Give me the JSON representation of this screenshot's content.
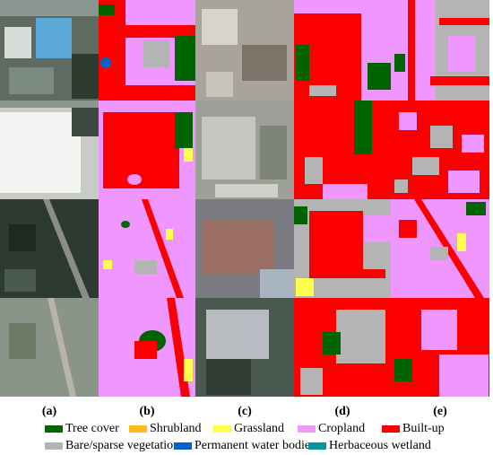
{
  "panel_labels": [
    "(a)",
    "(b)",
    "(c)",
    "(d)",
    "(e)"
  ],
  "legend": [
    {
      "label": "Tree cover",
      "color": "#006400"
    },
    {
      "label": "Shrubland",
      "color": "#ffbb22"
    },
    {
      "label": "Grassland",
      "color": "#ffff4c"
    },
    {
      "label": "Cropland",
      "color": "#f096ff"
    },
    {
      "label": "Built-up",
      "color": "#fa0000"
    },
    {
      "label": "Bare/sparse vegetation",
      "color": "#b4b4b4"
    },
    {
      "label": "Permanent water bodies",
      "color": "#0064c8"
    },
    {
      "label": "Herbaceous wetland",
      "color": "#0096a0"
    }
  ]
}
